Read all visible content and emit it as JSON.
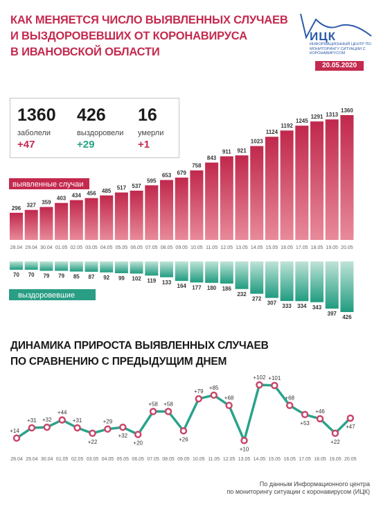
{
  "title": {
    "line1": "Как меняется число выявленных случаев",
    "line2": "и выздоровевших от коронавируса",
    "line3": "в Ивановской области"
  },
  "logo": {
    "name": "ИЦК",
    "subtitle": "Информационный центр по мониторингу ситуации с коронавирусом",
    "date": "20.05.2020"
  },
  "stats": [
    {
      "value": "1360",
      "label": "заболели",
      "increment": "+47"
    },
    {
      "value": "426",
      "label": "выздоровели",
      "increment": "+29"
    },
    {
      "value": "16",
      "label": "умерли",
      "increment": "+1"
    }
  ],
  "colors": {
    "accent": "#c42a4e",
    "recovered": "#25a386",
    "line": "#2aa38b"
  },
  "chart_data": [
    {
      "type": "bar",
      "categories": [
        "28.04",
        "29.04",
        "30.04",
        "01.05",
        "02.05",
        "03.05",
        "04.05",
        "05.05",
        "06.05",
        "07.05",
        "08.05",
        "09.05",
        "10.05",
        "11.05",
        "12.05",
        "13.05",
        "14.05",
        "15.05",
        "16.05",
        "17.05",
        "18.05",
        "19.05",
        "20.05"
      ],
      "series": [
        {
          "name": "выявленные случаи",
          "values": [
            296,
            327,
            359,
            403,
            434,
            456,
            485,
            517,
            537,
            595,
            653,
            679,
            758,
            843,
            911,
            921,
            1023,
            1124,
            1192,
            1245,
            1291,
            1313,
            1360
          ]
        },
        {
          "name": "выздоровевшие",
          "values": [
            70,
            70,
            79,
            79,
            85,
            87,
            92,
            99,
            102,
            119,
            133,
            164,
            177,
            180,
            186,
            232,
            272,
            307,
            333,
            334,
            343,
            397,
            426
          ]
        }
      ]
    },
    {
      "type": "line",
      "title": "Динамика прироста выявленных случаев по сравнению с предыдущим днем",
      "categories": [
        "28.04",
        "29.04",
        "30.04",
        "01.05",
        "02.05",
        "03.05",
        "04.05",
        "05.05",
        "06.05",
        "07.05",
        "08.05",
        "09.05",
        "10.05",
        "11.05",
        "12.05",
        "13.05",
        "14.05",
        "15.05",
        "16.05",
        "17.05",
        "18.05",
        "19.05",
        "20.05"
      ],
      "values": [
        14,
        31,
        32,
        44,
        31,
        22,
        29,
        32,
        20,
        58,
        58,
        26,
        79,
        85,
        68,
        10,
        102,
        101,
        68,
        53,
        46,
        22,
        47
      ],
      "labels": [
        "+14",
        "+31",
        "+32",
        "+44",
        "+31",
        "+22",
        "+29",
        "+32",
        "+20",
        "+58",
        "+58",
        "+26",
        "+79",
        "+85",
        "+68",
        "+10",
        "+102",
        "+101",
        "+68",
        "+53",
        "+46",
        "+22",
        "+47"
      ]
    }
  ],
  "section2": {
    "line1": "Динамика прироста выявленных случаев",
    "line2": "по сравнению с предыдущим днем"
  },
  "source": {
    "line1": "По данным Информационного центра",
    "line2": "по мониторингу ситуации с коронавирусом (ИЦК)"
  }
}
